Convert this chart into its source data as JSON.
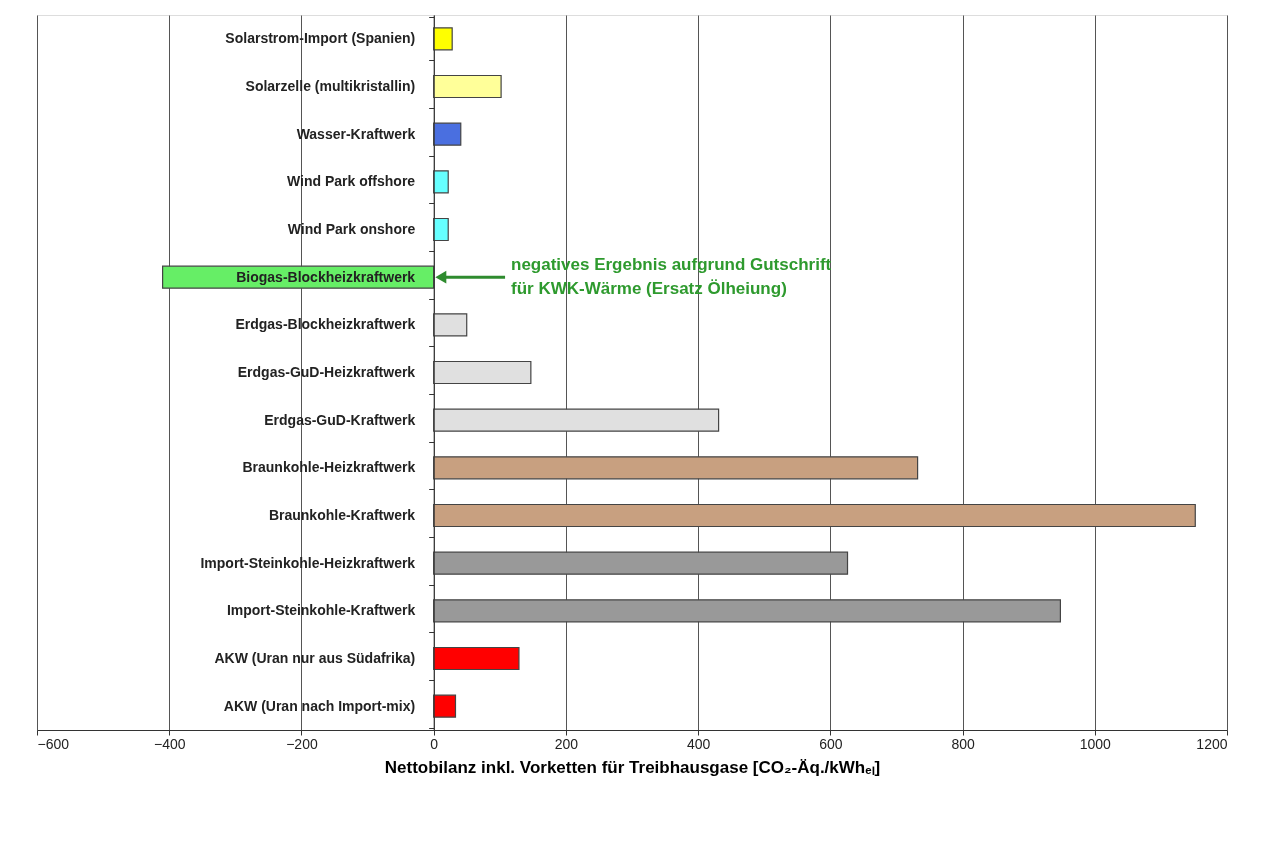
{
  "chart_data": {
    "type": "bar",
    "orientation": "horizontal",
    "categories": [
      "Solarstrom-Import (Spanien)",
      "Solarzelle (multikristallin)",
      "Wasser-Kraftwerk",
      "Wind Park offshore",
      "Wind Park onshore",
      "Biogas-Blockheizkraftwerk",
      "Erdgas-Blockheizkraftwerk",
      "Erdgas-GuD-Heizkraftwerk",
      "Erdgas-GuD-Kraftwerk",
      "Braunkohle-Heizkraftwerk",
      "Braunkohle-Kraftwerk",
      "Import-Steinkohle-Heizkraftwerk",
      "Import-Steinkohle-Kraftwerk",
      "AKW (Uran nur aus Südafrika)",
      "AKW (Uran nach Import-mix)"
    ],
    "values": [
      28,
      102,
      41,
      22,
      22,
      -410,
      50,
      147,
      431,
      732,
      1152,
      626,
      948,
      129,
      33
    ],
    "colors": [
      "#ffff00",
      "#ffff99",
      "#4a6fe0",
      "#66ffff",
      "#66ffff",
      "#66ee66",
      "#e0e0e0",
      "#e0e0e0",
      "#e0e0e0",
      "#c8a080",
      "#c8a080",
      "#999999",
      "#999999",
      "#ff0000",
      "#ff0000"
    ],
    "xlim": [
      -600,
      1200
    ],
    "xticks": [
      -600,
      -400,
      -200,
      0,
      200,
      400,
      600,
      800,
      1000,
      1200
    ],
    "xlabel": "Nettobilanz inkl. Vorketten für Treibhausgase [CO₂-Äq./kWhₑₗ]",
    "grid": "x",
    "annotations": [
      {
        "text": "negatives Ergebnis aufgrund Gutschrift\nfür KWK-Wärme (Ersatz Ölheiung)",
        "x": 0,
        "y": "Biogas-Blockheizkraftwerk"
      }
    ]
  }
}
